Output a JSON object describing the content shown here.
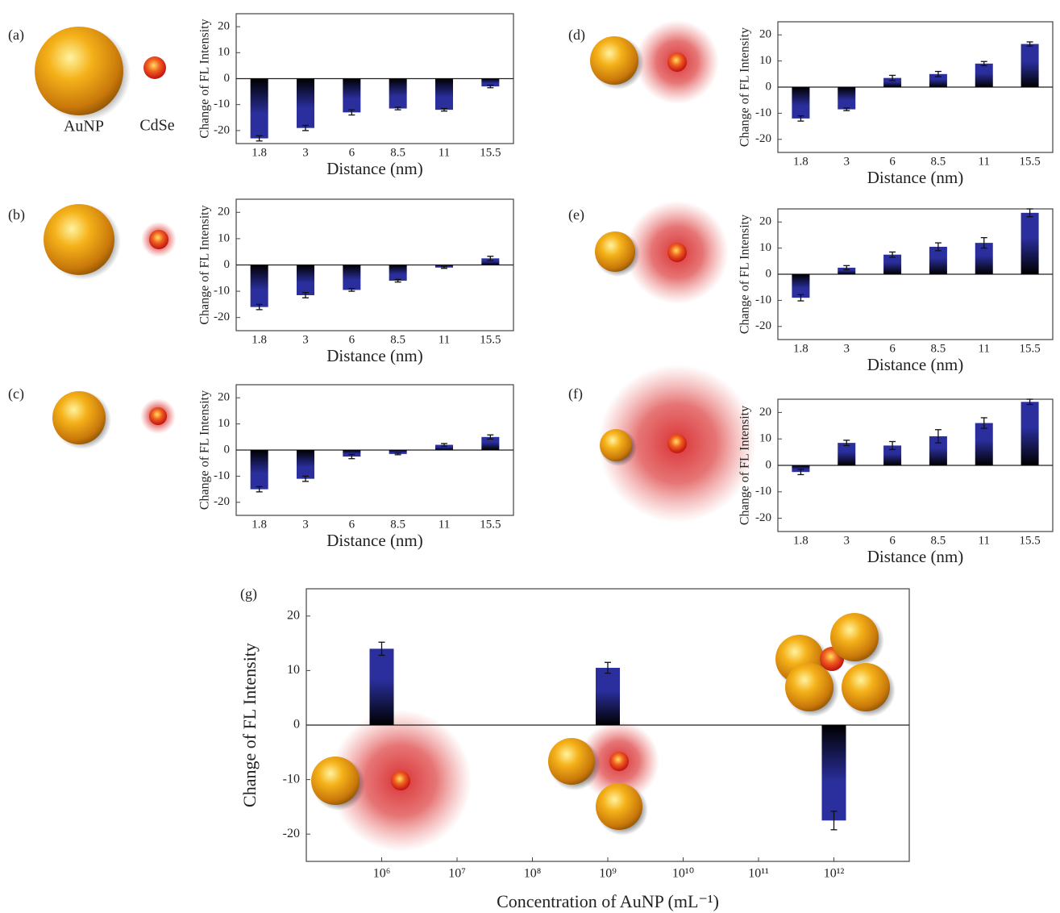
{
  "chart_data": [
    {
      "type": "bar",
      "label": "(a)",
      "annotations": [
        "AuNP",
        "CdSe"
      ],
      "categories": [
        "1.8",
        "3",
        "6",
        "8.5",
        "11",
        "15.5"
      ],
      "values": [
        -23,
        -19,
        -13,
        -11.5,
        -12,
        -3
      ],
      "errors": [
        1,
        1,
        1,
        0.5,
        0.5,
        0.5
      ],
      "color": "#2b2f9e",
      "xlabel": "Distance (nm)",
      "ylabel": "Change of FL Intensity",
      "ylim": [
        -25,
        25
      ],
      "yticks": [
        -20,
        -10,
        0,
        10,
        20
      ]
    },
    {
      "type": "bar",
      "label": "(b)",
      "categories": [
        "1.8",
        "3",
        "6",
        "8.5",
        "11",
        "15.5"
      ],
      "values": [
        -16,
        -11.5,
        -9.5,
        -6,
        -1,
        2.5
      ],
      "errors": [
        1,
        1,
        0.5,
        0.5,
        0.3,
        0.8
      ],
      "color": "#2b2f9e",
      "xlabel": "Distance (nm)",
      "ylabel": "Change of FL Intensity",
      "ylim": [
        -25,
        25
      ],
      "yticks": [
        -20,
        -10,
        0,
        10,
        20
      ]
    },
    {
      "type": "bar",
      "label": "(c)",
      "categories": [
        "1.8",
        "3",
        "6",
        "8.5",
        "11",
        "15.5"
      ],
      "values": [
        -15,
        -11,
        -2.5,
        -1.5,
        2,
        5
      ],
      "errors": [
        1,
        1,
        0.8,
        0.3,
        0.5,
        0.8
      ],
      "color": "#2b2f9e",
      "xlabel": "Distance (nm)",
      "ylabel": "Change of FL Intensity",
      "ylim": [
        -25,
        25
      ],
      "yticks": [
        -20,
        -10,
        0,
        10,
        20
      ]
    },
    {
      "type": "bar",
      "label": "(d)",
      "categories": [
        "1.8",
        "3",
        "6",
        "8.5",
        "11",
        "15.5"
      ],
      "values": [
        -12,
        -8.5,
        3.5,
        5,
        9,
        16.5
      ],
      "errors": [
        1,
        0.5,
        1,
        1,
        0.8,
        0.8
      ],
      "color": "#2b2f9e",
      "xlabel": "Distance (nm)",
      "ylabel": "Change of FL Intensity",
      "ylim": [
        -25,
        25
      ],
      "yticks": [
        -20,
        -10,
        0,
        10,
        20
      ]
    },
    {
      "type": "bar",
      "label": "(e)",
      "categories": [
        "1.8",
        "3",
        "6",
        "8.5",
        "11",
        "15.5"
      ],
      "values": [
        -9,
        2.5,
        7.5,
        10.5,
        12,
        23.5
      ],
      "errors": [
        1.2,
        0.8,
        1,
        1.5,
        2,
        1.5
      ],
      "color": "#2b2f9e",
      "xlabel": "Distance (nm)",
      "ylabel": "Change of FL Intensity",
      "ylim": [
        -25,
        25
      ],
      "yticks": [
        -20,
        -10,
        0,
        10,
        20
      ]
    },
    {
      "type": "bar",
      "label": "(f)",
      "categories": [
        "1.8",
        "3",
        "6",
        "8.5",
        "11",
        "15.5"
      ],
      "values": [
        -2.5,
        8.5,
        7.5,
        11,
        16,
        24
      ],
      "errors": [
        1,
        1,
        1.5,
        2.5,
        2,
        1
      ],
      "color": "#2b2f9e",
      "xlabel": "Distance (nm)",
      "ylabel": "Change of FL Intensity",
      "ylim": [
        -25,
        25
      ],
      "yticks": [
        -20,
        -10,
        0,
        10,
        20
      ]
    },
    {
      "type": "bar",
      "label": "(g)",
      "x": [
        1000000,
        1000000000,
        1000000000000
      ],
      "values": [
        14,
        10.5,
        -17.5
      ],
      "errors": [
        1.2,
        1,
        1.7
      ],
      "color": "#2b2f9e",
      "xlabel": "Concentration of AuNP (mL⁻¹)",
      "ylabel": "Change of FL Intensity",
      "xlog": true,
      "xlim": [
        100000,
        10000000000000
      ],
      "xticks": [
        {
          "value": 1000000,
          "label": "10⁶"
        },
        {
          "value": 10000000,
          "label": "10⁷"
        },
        {
          "value": 100000000,
          "label": "10⁸"
        },
        {
          "value": 1000000000,
          "label": "10⁹"
        },
        {
          "value": 10000000000,
          "label": "10¹⁰"
        },
        {
          "value": 100000000000,
          "label": "10¹¹"
        },
        {
          "value": 1000000000000,
          "label": "10¹²"
        }
      ],
      "ylim": [
        -25,
        25
      ],
      "yticks": [
        -20,
        -10,
        0,
        10,
        20
      ]
    }
  ]
}
